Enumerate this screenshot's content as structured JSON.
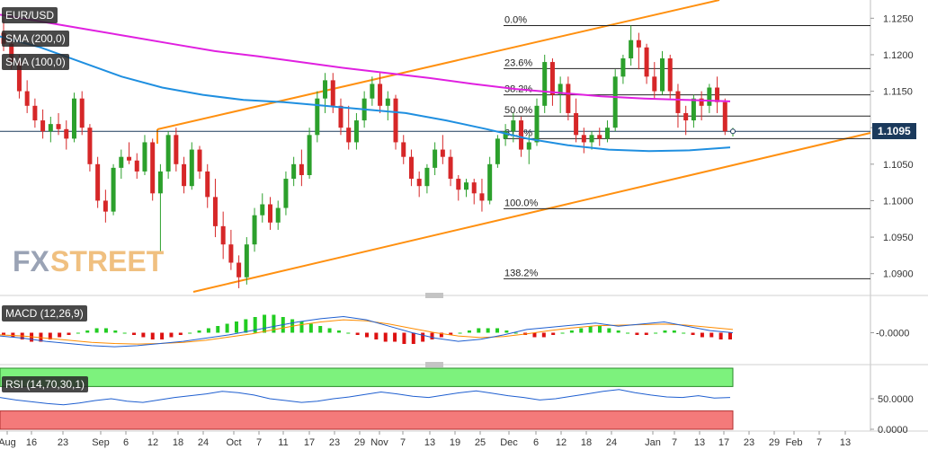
{
  "header": {
    "symbol": "EUR/USD",
    "sma200_label": "SMA (200,0)",
    "sma100_label": "SMA (100,0)",
    "macd_label": "MACD (12,26,9)",
    "rsi_label": "RSI (14,70,30,1)",
    "last_price": "1.1095"
  },
  "watermark": {
    "fx": "FX",
    "street": "STREET"
  },
  "colors": {
    "up": "#2ca02c",
    "down": "#d62728",
    "sma200": "#e020e0",
    "sma100": "#1f8fe0",
    "channel": "#ff9010",
    "macd_line": "#1f5fd0",
    "signal_line": "#ff8c00",
    "rsi_line": "#1f5fd0",
    "rsi_overbought_band": "#7df27d",
    "rsi_oversold_band": "#f47a7a"
  },
  "chart_data": [
    {
      "type": "candlestick",
      "title": "EUR/USD",
      "y_axis_labels": [
        "1.1250",
        "1.1200",
        "1.1150",
        "1.1100",
        "1.1050",
        "1.1000",
        "1.0950",
        "1.0900"
      ],
      "ylim": [
        1.0875,
        1.1275
      ],
      "x_axis_labels": [
        "Aug",
        "16",
        "23",
        "Sep",
        "6",
        "12",
        "18",
        "24",
        "Oct",
        "7",
        "11",
        "17",
        "23",
        "29",
        "Nov",
        "7",
        "13",
        "19",
        "25",
        "Dec",
        "6",
        "12",
        "18",
        "24",
        "Jan",
        "7",
        "13",
        "17",
        "23",
        "29",
        "Feb",
        "7",
        "13"
      ],
      "fibonacci": [
        {
          "label": "0.0%",
          "value": 1.124
        },
        {
          "label": "23.6%",
          "value": 1.1181
        },
        {
          "label": "38.2%",
          "value": 1.1145
        },
        {
          "label": "50.0%",
          "value": 1.1116
        },
        {
          "label": "61.8%",
          "value": 1.1085
        },
        {
          "label": "100.0%",
          "value": 1.0989
        },
        {
          "label": "138.2%",
          "value": 1.0893
        }
      ],
      "last_price": 1.1095,
      "series": [
        {
          "name": "SMA (200,0)",
          "type": "line",
          "values": [
            1.1255,
            1.1245,
            1.1235,
            1.1225,
            1.1215,
            1.1205,
            1.1198,
            1.119,
            1.1182,
            1.1175,
            1.1168,
            1.116,
            1.1153,
            1.1148,
            1.1143,
            1.114,
            1.1138,
            1.1136
          ]
        },
        {
          "name": "SMA (100,0)",
          "type": "line",
          "values": [
            1.1225,
            1.121,
            1.119,
            1.117,
            1.1155,
            1.1145,
            1.1138,
            1.1135,
            1.113,
            1.1125,
            1.112,
            1.111,
            1.1098,
            1.1085,
            1.1076,
            1.107,
            1.1068,
            1.1069,
            1.1073
          ]
        }
      ],
      "candles": [
        [
          1.123,
          1.125,
          1.1205,
          1.1215
        ],
        [
          1.1215,
          1.1225,
          1.118,
          1.119
        ],
        [
          1.119,
          1.12,
          1.114,
          1.115
        ],
        [
          1.115,
          1.1165,
          1.112,
          1.113
        ],
        [
          1.113,
          1.114,
          1.11,
          1.111
        ],
        [
          1.111,
          1.1125,
          1.1085,
          1.1095
        ],
        [
          1.1095,
          1.1115,
          1.108,
          1.1105
        ],
        [
          1.1105,
          1.112,
          1.109,
          1.1098
        ],
        [
          1.1098,
          1.111,
          1.107,
          1.1085
        ],
        [
          1.1085,
          1.1148,
          1.108,
          1.114
        ],
        [
          1.114,
          1.115,
          1.109,
          1.11
        ],
        [
          1.11,
          1.1105,
          1.104,
          1.105
        ],
        [
          1.105,
          1.106,
          1.099,
          1.1
        ],
        [
          1.1,
          1.1015,
          1.097,
          1.0985
        ],
        [
          1.0985,
          1.105,
          1.098,
          1.1045
        ],
        [
          1.1045,
          1.107,
          1.103,
          1.106
        ],
        [
          1.106,
          1.108,
          1.105,
          1.1055
        ],
        [
          1.1055,
          1.1065,
          1.103,
          1.104
        ],
        [
          1.104,
          1.109,
          1.1035,
          1.108
        ],
        [
          1.108,
          1.1085,
          1.1,
          1.101
        ],
        [
          1.101,
          1.105,
          1.093,
          1.104
        ],
        [
          1.104,
          1.1095,
          1.103,
          1.109
        ],
        [
          1.109,
          1.11,
          1.104,
          1.105
        ],
        [
          1.105,
          1.106,
          1.101,
          1.102
        ],
        [
          1.102,
          1.108,
          1.1015,
          1.107
        ],
        [
          1.107,
          1.1075,
          1.103,
          1.104
        ],
        [
          1.104,
          1.105,
          1.099,
          1.1005
        ],
        [
          1.1005,
          1.103,
          1.095,
          1.0965
        ],
        [
          1.0965,
          1.0985,
          1.092,
          1.094
        ],
        [
          1.094,
          1.096,
          1.0905,
          1.0915
        ],
        [
          1.0915,
          1.0925,
          1.088,
          1.0895
        ],
        [
          1.0895,
          1.095,
          1.0885,
          1.094
        ],
        [
          1.094,
          1.099,
          1.093,
          1.098
        ],
        [
          1.098,
          1.101,
          1.097,
          1.0995
        ],
        [
          1.0995,
          1.1005,
          1.096,
          1.097
        ],
        [
          1.097,
          1.1,
          1.096,
          1.099
        ],
        [
          1.099,
          1.104,
          1.098,
          1.103
        ],
        [
          1.103,
          1.106,
          1.102,
          1.105
        ],
        [
          1.105,
          1.107,
          1.102,
          1.1035
        ],
        [
          1.1035,
          1.11,
          1.103,
          1.109
        ],
        [
          1.109,
          1.115,
          1.108,
          1.114
        ],
        [
          1.114,
          1.1175,
          1.112,
          1.1165
        ],
        [
          1.1165,
          1.1175,
          1.112,
          1.113
        ],
        [
          1.113,
          1.114,
          1.109,
          1.11
        ],
        [
          1.11,
          1.113,
          1.107,
          1.108
        ],
        [
          1.108,
          1.112,
          1.107,
          1.111
        ],
        [
          1.111,
          1.115,
          1.11,
          1.114
        ],
        [
          1.114,
          1.117,
          1.113,
          1.116
        ],
        [
          1.116,
          1.1175,
          1.112,
          1.113
        ],
        [
          1.113,
          1.115,
          1.111,
          1.114
        ],
        [
          1.114,
          1.1145,
          1.107,
          1.108
        ],
        [
          1.108,
          1.109,
          1.105,
          1.106
        ],
        [
          1.106,
          1.107,
          1.102,
          1.103
        ],
        [
          1.103,
          1.104,
          1.1005,
          1.102
        ],
        [
          1.102,
          1.105,
          1.101,
          1.1045
        ],
        [
          1.1045,
          1.108,
          1.1035,
          1.107
        ],
        [
          1.107,
          1.109,
          1.105,
          1.106
        ],
        [
          1.106,
          1.107,
          1.102,
          1.103
        ],
        [
          1.103,
          1.1035,
          1.1,
          1.1015
        ],
        [
          1.1015,
          1.103,
          1.1005,
          1.1025
        ],
        [
          1.1025,
          1.103,
          1.0995,
          1.101
        ],
        [
          1.101,
          1.103,
          1.0985,
          1.1
        ],
        [
          1.1,
          1.106,
          1.0995,
          1.105
        ],
        [
          1.105,
          1.109,
          1.1045,
          1.1085
        ],
        [
          1.1085,
          1.1105,
          1.1075,
          1.1095
        ],
        [
          1.1095,
          1.112,
          1.108,
          1.111
        ],
        [
          1.111,
          1.1115,
          1.106,
          1.107
        ],
        [
          1.107,
          1.109,
          1.105,
          1.108
        ],
        [
          1.108,
          1.114,
          1.1075,
          1.113
        ],
        [
          1.113,
          1.12,
          1.112,
          1.119
        ],
        [
          1.119,
          1.1195,
          1.113,
          1.1145
        ],
        [
          1.1145,
          1.117,
          1.112,
          1.116
        ],
        [
          1.116,
          1.117,
          1.111,
          1.112
        ],
        [
          1.112,
          1.114,
          1.108,
          1.109
        ],
        [
          1.109,
          1.11,
          1.1065,
          1.108
        ],
        [
          1.108,
          1.1095,
          1.107,
          1.109
        ],
        [
          1.109,
          1.11,
          1.1075,
          1.1085
        ],
        [
          1.1085,
          1.111,
          1.108,
          1.11
        ],
        [
          1.11,
          1.118,
          1.1095,
          1.117
        ],
        [
          1.117,
          1.12,
          1.116,
          1.1195
        ],
        [
          1.1195,
          1.124,
          1.1185,
          1.122
        ],
        [
          1.122,
          1.123,
          1.118,
          1.121
        ],
        [
          1.121,
          1.1215,
          1.116,
          1.117
        ],
        [
          1.117,
          1.119,
          1.114,
          1.115
        ],
        [
          1.115,
          1.1205,
          1.1145,
          1.1195
        ],
        [
          1.1195,
          1.12,
          1.114,
          1.115
        ],
        [
          1.115,
          1.116,
          1.11,
          1.112
        ],
        [
          1.112,
          1.113,
          1.109,
          1.111
        ],
        [
          1.111,
          1.1145,
          1.11,
          1.114
        ],
        [
          1.114,
          1.115,
          1.111,
          1.113
        ],
        [
          1.113,
          1.116,
          1.112,
          1.1155
        ],
        [
          1.1155,
          1.117,
          1.112,
          1.1135
        ],
        [
          1.1135,
          1.114,
          1.109,
          1.1095
        ],
        [
          1.1095,
          1.11,
          1.1088,
          1.1095
        ]
      ]
    },
    {
      "type": "macd",
      "title": "MACD (12,26,9)",
      "y_axis_labels": [
        "-0.0000"
      ],
      "histogram": [
        -1,
        -2,
        -3,
        -4,
        -4,
        -3,
        -2,
        -1,
        0,
        1,
        2,
        2,
        1,
        0,
        -1,
        -2,
        -3,
        -3,
        -2,
        -1,
        0,
        1,
        2,
        3,
        4,
        5,
        6,
        7,
        8,
        8,
        7,
        6,
        5,
        4,
        3,
        2,
        1,
        0,
        -1,
        -2,
        -3,
        -4,
        -4,
        -5,
        -5,
        -4,
        -3,
        -2,
        -1,
        0,
        1,
        2,
        2,
        2,
        1,
        0,
        -1,
        -2,
        -2,
        -1,
        0,
        1,
        2,
        3,
        3,
        2,
        1,
        0,
        -1,
        -1,
        0,
        1,
        1,
        0,
        -1,
        -2,
        -2,
        -3,
        -3
      ],
      "macd_line": [
        -0.3,
        -0.5,
        -0.8,
        -1.0,
        -1.2,
        -1.3,
        -1.2,
        -1.0,
        -0.8,
        -0.5,
        -0.2,
        0.2,
        0.6,
        1.0,
        1.3,
        1.5,
        1.2,
        0.6,
        0.0,
        -0.5,
        -0.8,
        -0.6,
        -0.2,
        0.3,
        0.5,
        0.7,
        0.9,
        0.6,
        0.8,
        1.0,
        0.6,
        0.2,
        0.0
      ],
      "signal_line": [
        -0.2,
        -0.3,
        -0.5,
        -0.7,
        -0.9,
        -1.0,
        -1.05,
        -1.0,
        -0.9,
        -0.7,
        -0.4,
        -0.1,
        0.3,
        0.7,
        1.0,
        1.2,
        1.1,
        0.8,
        0.4,
        0.0,
        -0.3,
        -0.45,
        -0.35,
        -0.1,
        0.2,
        0.45,
        0.65,
        0.7,
        0.75,
        0.8,
        0.7,
        0.5,
        0.3
      ]
    },
    {
      "type": "rsi",
      "title": "RSI (14,70,30,1)",
      "y_axis_labels": [
        "50.0000",
        "0.0000"
      ],
      "ylim": [
        0,
        100
      ],
      "overbought": 70,
      "oversold": 30,
      "values": [
        52,
        48,
        45,
        42,
        40,
        43,
        47,
        50,
        46,
        44,
        48,
        52,
        55,
        58,
        62,
        60,
        56,
        50,
        47,
        44,
        46,
        50,
        53,
        57,
        61,
        58,
        54,
        52,
        56,
        60,
        63,
        59,
        55,
        52,
        48,
        50,
        54,
        58,
        62,
        65,
        60,
        56,
        53,
        52,
        55,
        51,
        52
      ]
    }
  ]
}
